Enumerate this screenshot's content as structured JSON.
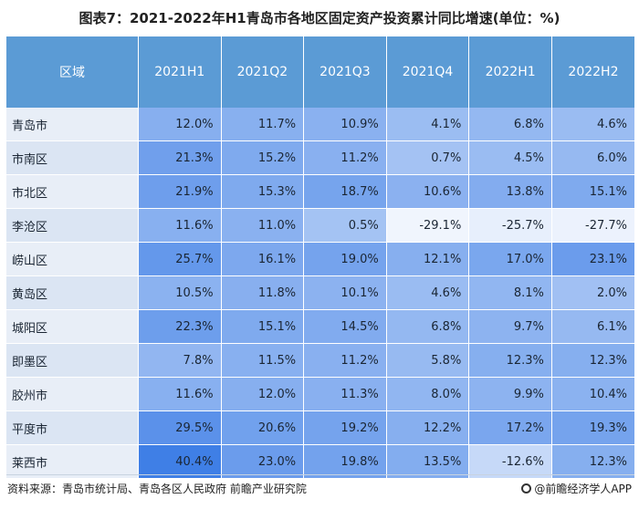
{
  "title": "图表7：2021-2022年H1青岛市各地区固定资产投资累计同比增速(单位：%)",
  "table": {
    "headers": [
      "区域",
      "2021H1",
      "2021Q2",
      "2021Q3",
      "2021Q4",
      "2022H1",
      "2022H2"
    ],
    "rows": [
      {
        "region": "青岛市",
        "values": [
          "12.0%",
          "11.7%",
          "10.9%",
          "4.1%",
          "6.8%",
          "4.6%"
        ]
      },
      {
        "region": "市南区",
        "values": [
          "21.3%",
          "15.2%",
          "11.2%",
          "0.7%",
          "4.5%",
          "6.0%"
        ]
      },
      {
        "region": "市北区",
        "values": [
          "21.9%",
          "15.3%",
          "18.7%",
          "10.6%",
          "13.8%",
          "15.1%"
        ]
      },
      {
        "region": "李沧区",
        "values": [
          "11.6%",
          "11.0%",
          "0.5%",
          "-29.1%",
          "-25.7%",
          "-27.7%"
        ]
      },
      {
        "region": "崂山区",
        "values": [
          "25.7%",
          "16.1%",
          "19.0%",
          "12.1%",
          "17.0%",
          "23.1%"
        ]
      },
      {
        "region": "黄岛区",
        "values": [
          "10.5%",
          "11.8%",
          "10.1%",
          "4.6%",
          "8.1%",
          "2.0%"
        ]
      },
      {
        "region": "城阳区",
        "values": [
          "22.3%",
          "15.1%",
          "14.5%",
          "6.8%",
          "9.7%",
          "6.1%"
        ]
      },
      {
        "region": "即墨区",
        "values": [
          "7.8%",
          "11.5%",
          "11.2%",
          "5.8%",
          "12.3%",
          "12.3%"
        ]
      },
      {
        "region": "胶州市",
        "values": [
          "11.6%",
          "12.0%",
          "11.3%",
          "8.0%",
          "9.9%",
          "10.4%"
        ]
      },
      {
        "region": "平度市",
        "values": [
          "29.5%",
          "20.6%",
          "19.2%",
          "12.2%",
          "17.2%",
          "19.3%"
        ]
      },
      {
        "region": "莱西市",
        "values": [
          "40.4%",
          "23.0%",
          "19.8%",
          "13.5%",
          "-12.6%",
          "12.3%"
        ]
      }
    ]
  },
  "heat_colors": {
    "low": "#ffffff",
    "high": "#3f7fe6"
  },
  "footer": {
    "source": "资料来源：青岛市统计局、青岛各区人民政府 前瞻产业研究院",
    "brand": "@前瞻经济学人APP"
  }
}
